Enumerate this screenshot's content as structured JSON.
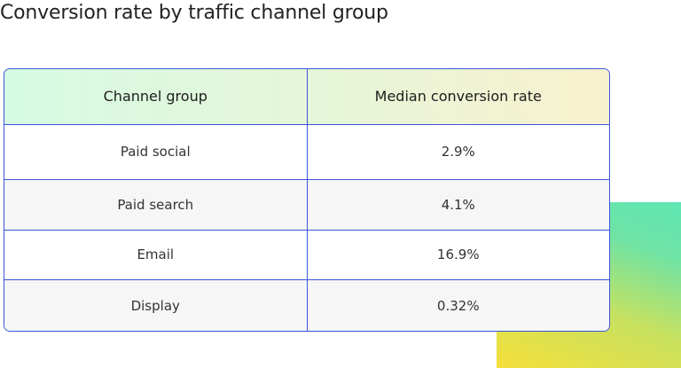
{
  "chart_data": {
    "type": "table",
    "title": "Conversion rate by traffic channel group",
    "columns": [
      "Channel group",
      "Median conversion rate"
    ],
    "rows": [
      [
        "Paid social",
        "2.9%"
      ],
      [
        "Paid search",
        "4.1%"
      ],
      [
        "Email",
        "16.9%"
      ],
      [
        "Display",
        "0.32%"
      ]
    ],
    "values": [
      2.9,
      4.1,
      16.9,
      0.32
    ],
    "unit": "%"
  },
  "colors": {
    "border": "#3a55d9",
    "header_gradient_start": "#d6fbe3",
    "header_gradient_end": "#f8f1cf",
    "alt_row": "#f6f6f6",
    "decor_gradient_start": "#f5df3a",
    "decor_gradient_end": "#5fe6b4"
  }
}
